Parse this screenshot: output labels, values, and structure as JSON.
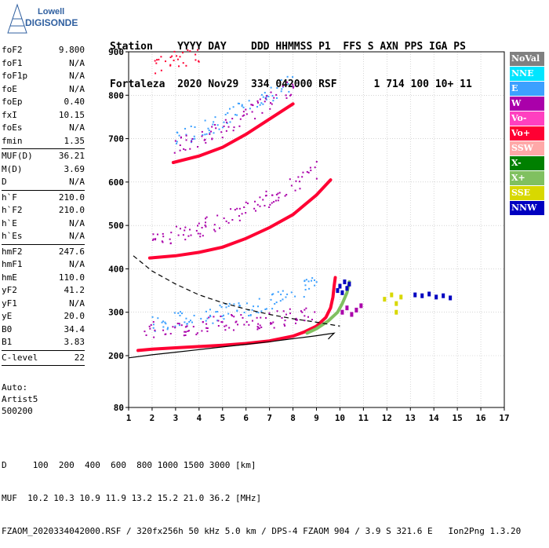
{
  "logo": {
    "line1": "Lowell",
    "line2": "DIGISONDE"
  },
  "header": {
    "line1": "Station    YYYY DAY    DDD HHMMSS P1  FFS S AXN PPS IGA PS",
    "line2": "Fortaleza  2020 Nov29  334 042000 RSF      1 714 100 10+ 11"
  },
  "params1": [
    {
      "k": "foF2",
      "v": "9.800"
    },
    {
      "k": "foF1",
      "v": "N/A"
    },
    {
      "k": "foF1p",
      "v": "N/A"
    },
    {
      "k": "foE",
      "v": "N/A"
    },
    {
      "k": "foEp",
      "v": "0.40"
    },
    {
      "k": "fxI",
      "v": "10.15"
    },
    {
      "k": "foEs",
      "v": "N/A"
    },
    {
      "k": "fmin",
      "v": "1.35"
    }
  ],
  "params2": [
    {
      "k": "MUF(D)",
      "v": "36.21"
    },
    {
      "k": "M(D)",
      "v": "3.69"
    },
    {
      "k": "D",
      "v": "N/A"
    }
  ],
  "params3": [
    {
      "k": "h`F",
      "v": "210.0"
    },
    {
      "k": "h`F2",
      "v": "210.0"
    },
    {
      "k": "h`E",
      "v": "N/A"
    },
    {
      "k": "h`Es",
      "v": "N/A"
    }
  ],
  "params4": [
    {
      "k": "hmF2",
      "v": "247.6"
    },
    {
      "k": "hmF1",
      "v": "N/A"
    },
    {
      "k": "hmE",
      "v": "110.0"
    },
    {
      "k": "yF2",
      "v": "41.2"
    },
    {
      "k": "yF1",
      "v": "N/A"
    },
    {
      "k": "yE",
      "v": "20.0"
    },
    {
      "k": "B0",
      "v": "34.4"
    },
    {
      "k": "B1",
      "v": "3.83"
    }
  ],
  "clevel": {
    "k": "C-level",
    "v": "22"
  },
  "auto": {
    "line1": "Auto:",
    "line2": "Artist5",
    "line3": "500200"
  },
  "legend": [
    {
      "label": "NoVal",
      "bg": "#808080",
      "fg": "#ffffff"
    },
    {
      "label": "NNE",
      "bg": "#00e5ff",
      "fg": "#ffffff"
    },
    {
      "label": "E",
      "bg": "#3ca0ff",
      "fg": "#ffffff"
    },
    {
      "label": "W",
      "bg": "#aa00aa",
      "fg": "#ffffff"
    },
    {
      "label": "Vo-",
      "bg": "#ff40c0",
      "fg": "#ffffff"
    },
    {
      "label": "Vo+",
      "bg": "#ff0033",
      "fg": "#ffffff"
    },
    {
      "label": "SSW",
      "bg": "#ffa8a8",
      "fg": "#ffffff"
    },
    {
      "label": "X-",
      "bg": "#008000",
      "fg": "#ffffff"
    },
    {
      "label": "X+",
      "bg": "#80c060",
      "fg": "#ffffff"
    },
    {
      "label": "SSE",
      "bg": "#d8d800",
      "fg": "#ffffff"
    },
    {
      "label": "NNW",
      "bg": "#0000c0",
      "fg": "#ffffff"
    }
  ],
  "bottom": {
    "line1": "D     100  200  400  600  800 1000 1500 3000 [km]",
    "line2": "MUF  10.2 10.3 10.9 11.9 13.2 15.2 21.0 36.2 [MHz]",
    "line3": "FZAOM_2020334042000.RSF / 320fx256h 50 kHz 5.0 km / DPS-4 FZAOM 904 / 3.9 S 321.6 E   Ion2Png 1.3.20"
  },
  "chart_data": {
    "type": "scatter",
    "xlim": [
      1,
      17
    ],
    "ylim": [
      80,
      900
    ],
    "x_ticks": [
      1,
      2,
      3,
      4,
      5,
      6,
      7,
      8,
      9,
      10,
      11,
      12,
      13,
      14,
      15,
      16,
      17
    ],
    "y_ticks": [
      80,
      200,
      300,
      400,
      500,
      600,
      700,
      800,
      900
    ],
    "x_tick_labels": [
      "1",
      "2",
      "3",
      "4",
      "5",
      "6",
      "7",
      "8",
      "9",
      "10",
      "11",
      "12",
      "13",
      "14",
      "15",
      "16",
      "17"
    ],
    "y_tick_labels": [
      "80",
      "200",
      "300",
      "400",
      "500",
      "600",
      "700",
      "800",
      "900"
    ],
    "grid": true,
    "series": [
      {
        "name": "F-trace O (Vo+)",
        "color": "#ff0033",
        "kind": "trace",
        "points": [
          [
            1.4,
            212
          ],
          [
            2,
            215
          ],
          [
            3,
            218
          ],
          [
            4,
            221
          ],
          [
            5,
            224
          ],
          [
            6,
            228
          ],
          [
            7,
            234
          ],
          [
            8,
            245
          ],
          [
            8.5,
            255
          ],
          [
            9,
            268
          ],
          [
            9.4,
            288
          ],
          [
            9.6,
            310
          ],
          [
            9.7,
            335
          ],
          [
            9.75,
            360
          ],
          [
            9.8,
            380
          ]
        ]
      },
      {
        "name": "F-trace X (X+)",
        "color": "#80c060",
        "kind": "trace",
        "points": [
          [
            8.6,
            252
          ],
          [
            9,
            262
          ],
          [
            9.5,
            280
          ],
          [
            9.9,
            300
          ],
          [
            10.1,
            320
          ],
          [
            10.3,
            345
          ],
          [
            10.4,
            370
          ]
        ]
      },
      {
        "name": "2F (Vo+)",
        "color": "#ff0033",
        "kind": "trace",
        "points": [
          [
            1.9,
            425
          ],
          [
            3,
            430
          ],
          [
            4,
            438
          ],
          [
            5,
            450
          ],
          [
            6,
            470
          ],
          [
            7,
            495
          ],
          [
            8,
            525
          ],
          [
            9,
            570
          ],
          [
            9.6,
            605
          ]
        ]
      },
      {
        "name": "3F (Vo+)",
        "color": "#ff0033",
        "kind": "trace",
        "points": [
          [
            2.9,
            645
          ],
          [
            4,
            660
          ],
          [
            5,
            680
          ],
          [
            6,
            710
          ],
          [
            7,
            745
          ],
          [
            8,
            780
          ]
        ]
      },
      {
        "name": "Spread lower (E)",
        "color": "#3ca0ff",
        "kind": "band",
        "points": [
          [
            1.9,
            275
          ],
          [
            3,
            282
          ],
          [
            4,
            290
          ],
          [
            5,
            300
          ],
          [
            6,
            312
          ],
          [
            7,
            326
          ],
          [
            8,
            342
          ],
          [
            9,
            370
          ]
        ]
      },
      {
        "name": "Spread lower (W)",
        "color": "#aa00aa",
        "kind": "band",
        "points": [
          [
            1.6,
            262
          ],
          [
            3,
            266
          ],
          [
            4,
            270
          ],
          [
            5,
            275
          ],
          [
            6,
            280
          ],
          [
            7,
            285
          ],
          [
            8,
            290
          ],
          [
            9,
            296
          ]
        ]
      },
      {
        "name": "Spread 2F (W)",
        "color": "#aa00aa",
        "kind": "band",
        "points": [
          [
            2,
            470
          ],
          [
            3,
            480
          ],
          [
            4,
            495
          ],
          [
            5,
            515
          ],
          [
            6,
            540
          ],
          [
            7,
            565
          ],
          [
            8,
            595
          ],
          [
            9,
            630
          ]
        ]
      },
      {
        "name": "Spread 3F (E)",
        "color": "#3ca0ff",
        "kind": "band",
        "points": [
          [
            2.9,
            700
          ],
          [
            4,
            720
          ],
          [
            5,
            745
          ],
          [
            6,
            775
          ],
          [
            7,
            805
          ],
          [
            8,
            835
          ]
        ]
      },
      {
        "name": "Spread 3F (W)",
        "color": "#aa00aa",
        "kind": "band",
        "points": [
          [
            2.9,
            680
          ],
          [
            4,
            700
          ],
          [
            5,
            725
          ],
          [
            6,
            755
          ],
          [
            7,
            790
          ],
          [
            8,
            825
          ]
        ]
      },
      {
        "name": "Top (Vo+)",
        "color": "#ff0033",
        "kind": "band",
        "points": [
          [
            2,
            870
          ],
          [
            3,
            885
          ],
          [
            4,
            895
          ]
        ]
      },
      {
        "name": "Near foF2 (NNW)",
        "color": "#0000c0",
        "kind": "cluster",
        "points": [
          [
            9.9,
            350
          ],
          [
            10.0,
            360
          ],
          [
            10.1,
            345
          ],
          [
            10.2,
            370
          ],
          [
            10.3,
            355
          ],
          [
            10.4,
            365
          ]
        ]
      },
      {
        "name": "Near foF2 (W)",
        "color": "#aa00aa",
        "kind": "cluster",
        "points": [
          [
            10.1,
            300
          ],
          [
            10.3,
            310
          ],
          [
            10.5,
            295
          ],
          [
            10.7,
            305
          ],
          [
            10.9,
            315
          ]
        ]
      },
      {
        "name": "Far (NNW)",
        "color": "#0000c0",
        "kind": "cluster",
        "points": [
          [
            13.2,
            340
          ],
          [
            13.5,
            338
          ],
          [
            13.8,
            342
          ],
          [
            14.1,
            335
          ],
          [
            14.4,
            338
          ],
          [
            14.7,
            333
          ]
        ]
      },
      {
        "name": "Far (SSE)",
        "color": "#d8d800",
        "kind": "cluster",
        "points": [
          [
            11.9,
            330
          ],
          [
            12.2,
            340
          ],
          [
            12.4,
            320
          ],
          [
            12.6,
            335
          ],
          [
            12.4,
            300
          ]
        ]
      }
    ],
    "profile": {
      "color": "#000000",
      "points": [
        [
          1,
          195
        ],
        [
          2,
          202
        ],
        [
          3,
          208
        ],
        [
          4,
          214
        ],
        [
          5,
          220
        ],
        [
          6,
          226
        ],
        [
          7,
          232
        ],
        [
          8,
          239
        ],
        [
          9,
          246
        ],
        [
          9.5,
          250
        ],
        [
          9.75,
          252
        ],
        [
          9.6,
          244
        ],
        [
          9.5,
          238
        ]
      ]
    },
    "muf_curve": {
      "color": "#000000",
      "style": "dashed",
      "points": [
        [
          1.2,
          430
        ],
        [
          2,
          395
        ],
        [
          3,
          365
        ],
        [
          4,
          340
        ],
        [
          5,
          322
        ],
        [
          6,
          307
        ],
        [
          7,
          295
        ],
        [
          8,
          285
        ],
        [
          9,
          277
        ],
        [
          10,
          268
        ]
      ]
    }
  }
}
